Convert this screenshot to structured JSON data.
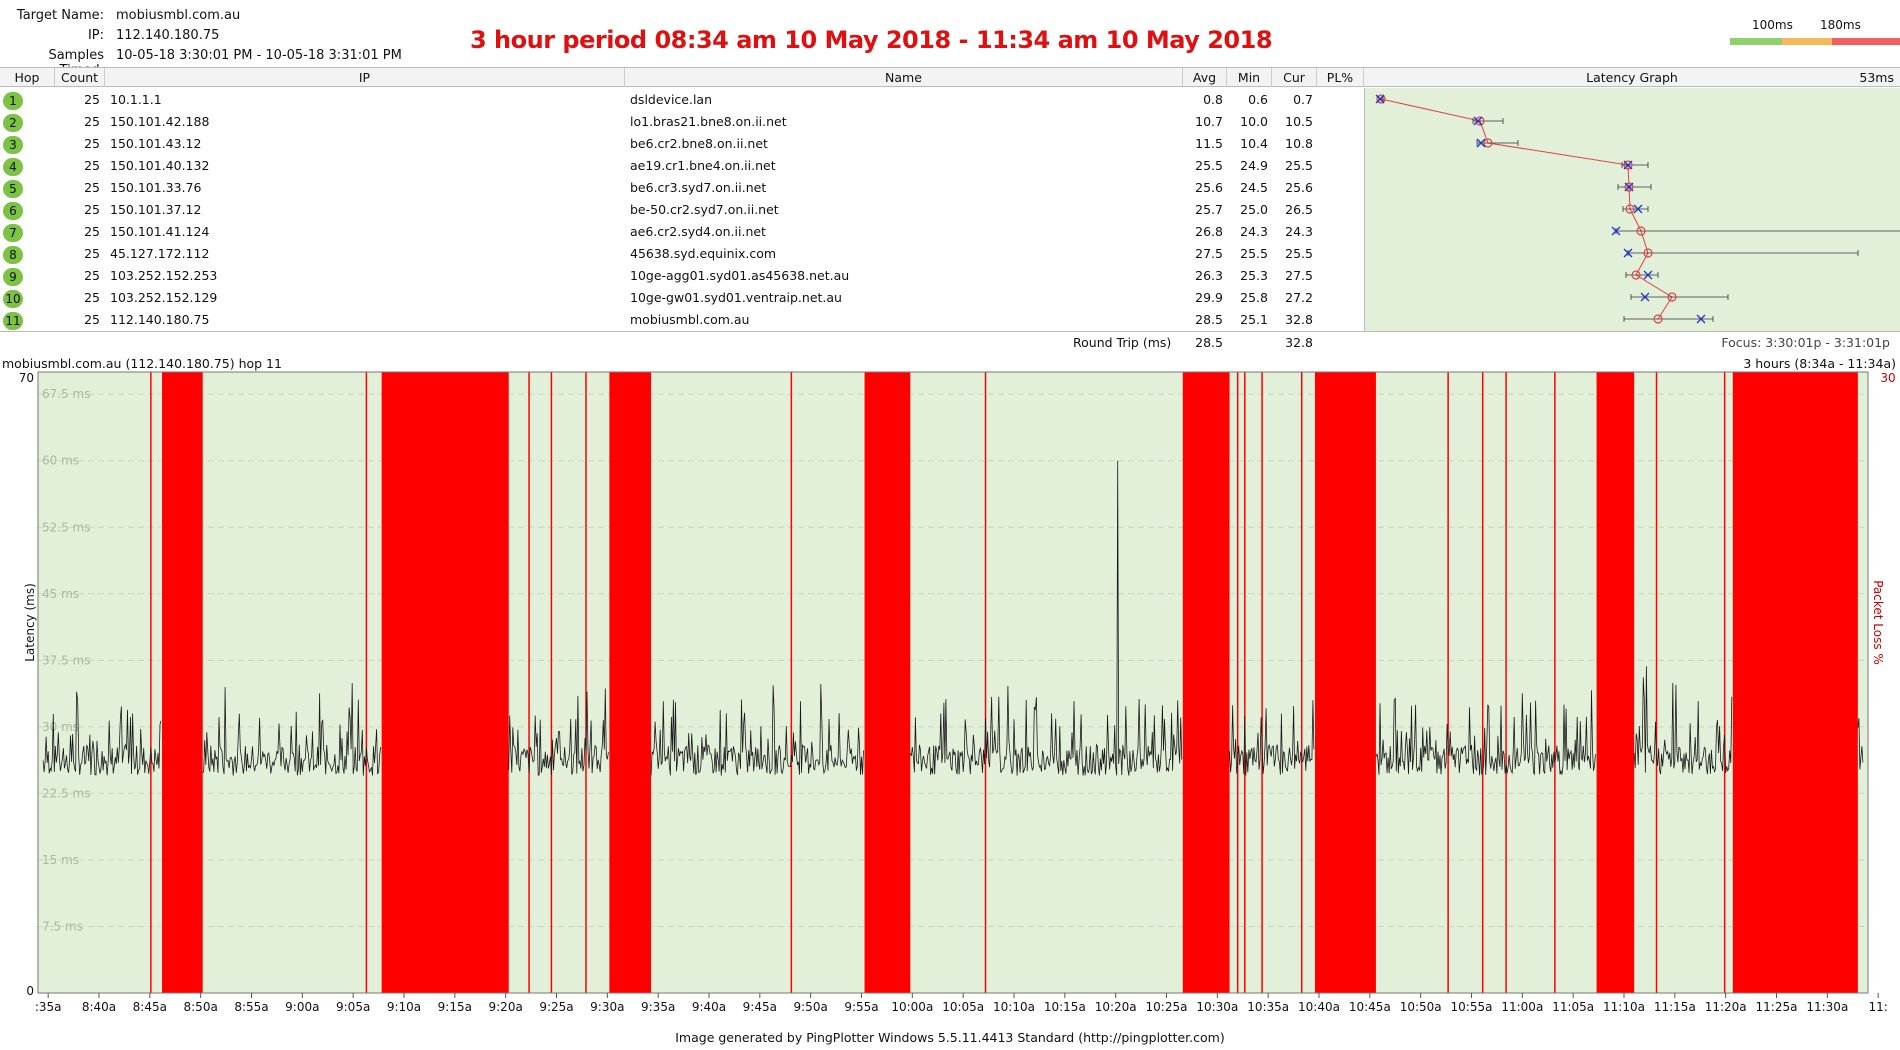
{
  "header": {
    "target_label": "Target Name:",
    "target_value": "mobiusmbl.com.au",
    "ip_label": "IP:",
    "ip_value": "112.140.180.75",
    "samples_label": "Samples Timed:",
    "samples_value": "10-05-18 3:30:01 PM - 10-05-18 3:31:01 PM",
    "banner": "3 hour period 08:34 am 10 May 2018 - 11:34 am 10 May 2018",
    "legend_100": "100ms",
    "legend_180": "180ms",
    "legend_colors": [
      "#8fd16a",
      "#f7b85c",
      "#f06060"
    ]
  },
  "table": {
    "columns": [
      "Hop",
      "Count",
      "IP",
      "Name",
      "Avg",
      "Min",
      "Cur",
      "PL%",
      "Latency Graph"
    ],
    "graph_scale": "53ms",
    "rows": [
      {
        "hop": "1",
        "count": "25",
        "ip": "10.1.1.1",
        "name": "dsldevice.lan",
        "avg": "0.8",
        "min": "0.6",
        "cur": "0.7"
      },
      {
        "hop": "2",
        "count": "25",
        "ip": "150.101.42.188",
        "name": "lo1.bras21.bne8.on.ii.net",
        "avg": "10.7",
        "min": "10.0",
        "cur": "10.5"
      },
      {
        "hop": "3",
        "count": "25",
        "ip": "150.101.43.12",
        "name": "be6.cr2.bne8.on.ii.net",
        "avg": "11.5",
        "min": "10.4",
        "cur": "10.8"
      },
      {
        "hop": "4",
        "count": "25",
        "ip": "150.101.40.132",
        "name": "ae19.cr1.bne4.on.ii.net",
        "avg": "25.5",
        "min": "24.9",
        "cur": "25.5"
      },
      {
        "hop": "5",
        "count": "25",
        "ip": "150.101.33.76",
        "name": "be6.cr3.syd7.on.ii.net",
        "avg": "25.6",
        "min": "24.5",
        "cur": "25.6"
      },
      {
        "hop": "6",
        "count": "25",
        "ip": "150.101.37.12",
        "name": "be-50.cr2.syd7.on.ii.net",
        "avg": "25.7",
        "min": "25.0",
        "cur": "26.5"
      },
      {
        "hop": "7",
        "count": "25",
        "ip": "150.101.41.124",
        "name": "ae6.cr2.syd4.on.ii.net",
        "avg": "26.8",
        "min": "24.3",
        "cur": "24.3"
      },
      {
        "hop": "8",
        "count": "25",
        "ip": "45.127.172.112",
        "name": "45638.syd.equinix.com",
        "avg": "27.5",
        "min": "25.5",
        "cur": "25.5"
      },
      {
        "hop": "9",
        "count": "25",
        "ip": "103.252.152.253",
        "name": "10ge-agg01.syd01.as45638.net.au",
        "avg": "26.3",
        "min": "25.3",
        "cur": "27.5"
      },
      {
        "hop": "10",
        "count": "25",
        "ip": "103.252.152.129",
        "name": "10ge-gw01.syd01.ventraip.net.au",
        "avg": "29.9",
        "min": "25.8",
        "cur": "27.2"
      },
      {
        "hop": "11",
        "count": "25",
        "ip": "112.140.180.75",
        "name": "mobiusmbl.com.au",
        "avg": "28.5",
        "min": "25.1",
        "cur": "32.8"
      }
    ],
    "round_trip_label": "Round Trip (ms)",
    "round_trip_avg": "28.5",
    "round_trip_cur": "32.8",
    "focus": "Focus: 3:30:01p - 3:31:01p"
  },
  "latency_graph": {
    "max_ms": 53,
    "hops": [
      {
        "avg": 0.8,
        "min": 0.6,
        "max": 1.0,
        "cur": 0.7
      },
      {
        "avg": 10.7,
        "min": 10.0,
        "max": 13.0,
        "cur": 10.5
      },
      {
        "avg": 11.5,
        "min": 10.4,
        "max": 14.5,
        "cur": 10.8
      },
      {
        "avg": 25.5,
        "min": 24.9,
        "max": 27.5,
        "cur": 25.5
      },
      {
        "avg": 25.6,
        "min": 24.5,
        "max": 27.8,
        "cur": 25.6
      },
      {
        "avg": 25.7,
        "min": 25.0,
        "max": 27.5,
        "cur": 26.5
      },
      {
        "avg": 26.8,
        "min": 24.3,
        "max": 53.0,
        "cur": 24.3
      },
      {
        "avg": 27.5,
        "min": 25.5,
        "max": 48.5,
        "cur": 25.5
      },
      {
        "avg": 26.3,
        "min": 25.3,
        "max": 28.5,
        "cur": 27.5
      },
      {
        "avg": 29.9,
        "min": 25.8,
        "max": 35.5,
        "cur": 27.2
      },
      {
        "avg": 28.5,
        "min": 25.1,
        "max": 34.0,
        "cur": 32.8
      }
    ]
  },
  "timeline": {
    "title": "mobiusmbl.com.au (112.140.180.75) hop 11",
    "period": "3 hours (8:34a - 11:34a)",
    "y_axis_label": "Latency (ms)",
    "right_axis_label": "Packet Loss %",
    "y_top": "70",
    "y_bottom": "0",
    "right_top": "30",
    "gridlines": [
      "67.5 ms",
      "60 ms",
      "52.5 ms",
      "45 ms",
      "37.5 ms",
      "30 ms",
      "22.5 ms",
      "15 ms",
      "7.5 ms"
    ],
    "gridline_values": [
      67.5,
      60,
      52.5,
      45,
      37.5,
      30,
      22.5,
      15,
      7.5
    ],
    "y_max": 70,
    "t_start_min": 514,
    "t_end_min": 694,
    "ticks": [
      ":35a",
      "8:40a",
      "8:45a",
      "8:50a",
      "8:55a",
      "9:00a",
      "9:05a",
      "9:10a",
      "9:15a",
      "9:20a",
      "9:25a",
      "9:30a",
      "9:35a",
      "9:40a",
      "9:45a",
      "9:50a",
      "9:55a",
      "10:00a",
      "10:05a",
      "10:10a",
      "10:15a",
      "10:20a",
      "10:25a",
      "10:30a",
      "10:35a",
      "10:40a",
      "10:45a",
      "10:50a",
      "10:55a",
      "11:00a",
      "11:05a",
      "11:10a",
      "11:15a",
      "11:20a",
      "11:25a",
      "11:30a",
      "11:"
    ],
    "tick_minutes": [
      515,
      520,
      525,
      530,
      535,
      540,
      545,
      550,
      555,
      560,
      565,
      570,
      575,
      580,
      585,
      590,
      595,
      600,
      605,
      610,
      615,
      620,
      625,
      630,
      635,
      640,
      645,
      650,
      655,
      660,
      665,
      670,
      675,
      680,
      685,
      690,
      695
    ],
    "loss_blocks": [
      [
        526.2,
        530.2
      ],
      [
        547.8,
        560.3
      ],
      [
        570.2,
        574.3
      ],
      [
        595.3,
        599.8
      ],
      [
        626.6,
        631.2
      ],
      [
        639.6,
        645.6
      ],
      [
        667.3,
        671.0
      ],
      [
        680.7,
        693.0
      ]
    ],
    "loss_lines": [
      525.1,
      546.3,
      562.3,
      564.5,
      567.9,
      588.1,
      607.2,
      632.0,
      632.7,
      634.4,
      638.3,
      652.7,
      656.1,
      658.4,
      663.2,
      673.2,
      679.9
    ],
    "baseline_ms": 24.5,
    "spike_ms": 60
  },
  "footer": "Image generated by PingPlotter Windows 5.5.11.4413 Standard (http://pingplotter.com)"
}
